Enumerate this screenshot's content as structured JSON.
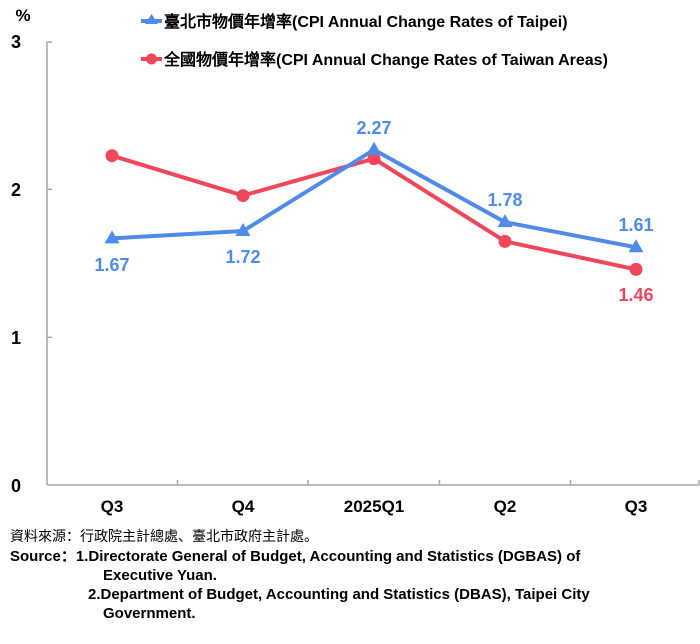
{
  "chart_data": {
    "type": "line",
    "title": "",
    "xlabel": "",
    "ylabel": "%",
    "ylim": [
      0,
      3
    ],
    "yticks": [
      0,
      1,
      2,
      3
    ],
    "grid": false,
    "legend_position": "top-right",
    "categories": [
      "Q3",
      "Q4",
      "2025Q1",
      "Q2",
      "Q3"
    ],
    "series": [
      {
        "name": "臺北市物價年增率(CPI Annual Change Rates of Taipei)",
        "color": "#4F8BE8",
        "marker": "triangle",
        "values": [
          1.67,
          1.72,
          2.27,
          1.78,
          1.61
        ],
        "data_labels": [
          "1.67",
          "1.72",
          "2.27",
          "1.78",
          "1.61"
        ]
      },
      {
        "name": "全國物價年增率(CPI Annual Change Rates of Taiwan Areas)",
        "color": "#F2465A",
        "marker": "circle",
        "values": [
          2.23,
          1.96,
          2.21,
          1.65,
          1.46
        ],
        "data_labels": [
          null,
          null,
          null,
          null,
          "1.46"
        ]
      }
    ]
  },
  "axis": {
    "unit": "%",
    "y_tick_labels": [
      "0",
      "1",
      "2",
      "3"
    ],
    "x_tick_labels": [
      "Q3",
      "Q4",
      "2025Q1",
      "Q2",
      "Q3"
    ]
  },
  "legend": {
    "taipei": "臺北市物價年增率(CPI Annual Change Rates of Taipei)",
    "taiwan": "全國物價年增率(CPI Annual Change Rates of Taiwan Areas)"
  },
  "notes": {
    "source_zh": "資料來源：行政院主計總處、臺北市政府主計處。",
    "source_label": "Source：",
    "source_1a": "1.Directorate General of Budget, Accounting and Statistics (DGBAS) of",
    "source_1b": "Executive Yuan.",
    "source_2a": "2.Department of Budget, Accounting and Statistics (DBAS), Taipei City",
    "source_2b": "Government."
  },
  "colors": {
    "taipei": "#4F8BE8",
    "taiwan": "#F2465A",
    "axis": "#A6A6A6",
    "text": "#000000"
  }
}
